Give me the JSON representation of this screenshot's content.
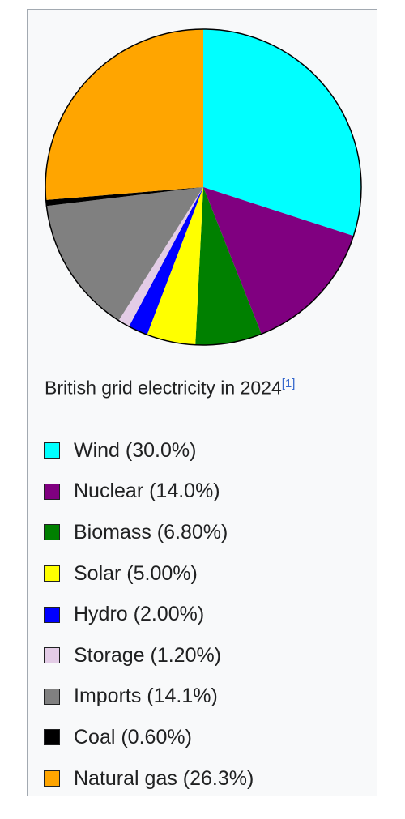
{
  "caption": "British grid electricity in 2024",
  "citation": "[1]",
  "chart_data": {
    "type": "pie",
    "title": "British grid electricity in 2024",
    "slices": [
      {
        "name": "Wind",
        "label": "Wind (30.0%)",
        "value": 30.0,
        "color": "#00ffff"
      },
      {
        "name": "Nuclear",
        "label": "Nuclear (14.0%)",
        "value": 14.0,
        "color": "#800080"
      },
      {
        "name": "Biomass",
        "label": "Biomass (6.80%)",
        "value": 6.8,
        "color": "#008000"
      },
      {
        "name": "Solar",
        "label": "Solar (5.00%)",
        "value": 5.0,
        "color": "#ffff00"
      },
      {
        "name": "Hydro",
        "label": "Hydro (2.00%)",
        "value": 2.0,
        "color": "#0000ff"
      },
      {
        "name": "Storage",
        "label": "Storage (1.20%)",
        "value": 1.2,
        "color": "#e3cce6"
      },
      {
        "name": "Imports",
        "label": "Imports (14.1%)",
        "value": 14.1,
        "color": "#808080"
      },
      {
        "name": "Coal",
        "label": "Coal (0.60%)",
        "value": 0.6,
        "color": "#000000"
      },
      {
        "name": "Natural gas",
        "label": "Natural gas (26.3%)",
        "value": 26.3,
        "color": "#ffa500"
      }
    ]
  }
}
